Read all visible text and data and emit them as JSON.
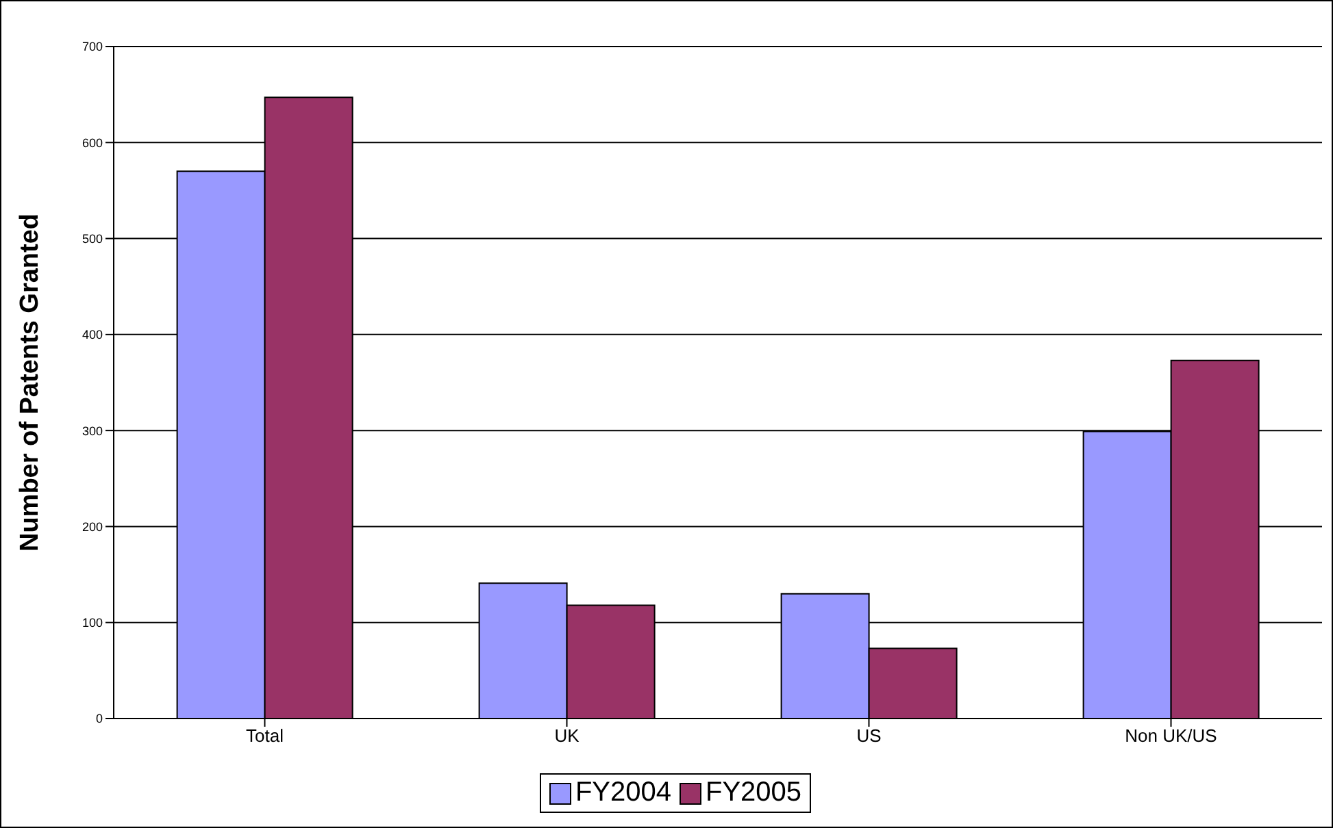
{
  "chart_data": {
    "type": "bar",
    "ylabel": "Number of Patents Granted",
    "categories": [
      "Total",
      "UK",
      "US",
      "Non UK/US"
    ],
    "series": [
      {
        "name": "FY2004",
        "color": "#9999ff",
        "values": [
          570,
          141,
          130,
          299
        ]
      },
      {
        "name": "FY2005",
        "color": "#993366",
        "values": [
          647,
          118,
          73,
          373
        ]
      }
    ],
    "ylim": [
      0,
      700
    ],
    "yticks": [
      0,
      100,
      200,
      300,
      400,
      500,
      600,
      700
    ],
    "grid": "y",
    "legend": "bottom"
  }
}
